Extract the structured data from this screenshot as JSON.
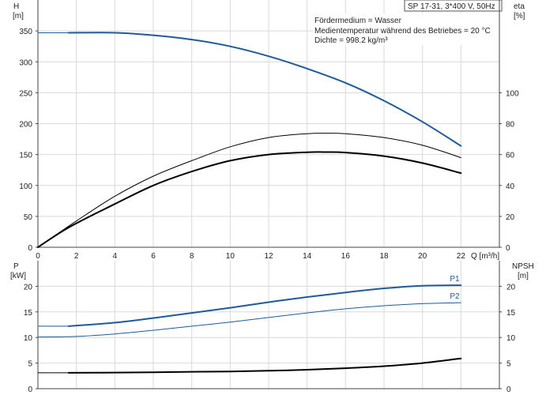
{
  "title_box": "SP 17-31, 3*400 V, 50Hz",
  "info_lines": [
    "Fördermedium = Wasser",
    "Medientemperatur während des Betriebes = 20 °C",
    "Dichte = 998.2 kg/m³"
  ],
  "colors": {
    "blue": "#1f5a99",
    "black": "#000000",
    "axis": "#444444"
  },
  "chart_data": [
    {
      "type": "line",
      "name": "upper",
      "xlabel": "Q [m³/h]",
      "ylabel_left": "H",
      "ylabel_left_unit": "[m]",
      "ylabel_right": "eta",
      "ylabel_right_unit": "[%]",
      "xlim": [
        0,
        24
      ],
      "ylim_left": [
        0,
        400
      ],
      "ylim_right": [
        0,
        160
      ],
      "x_ticks": [
        0,
        2,
        4,
        6,
        8,
        10,
        12,
        14,
        16,
        18,
        20,
        22
      ],
      "y_left_ticks": [
        0,
        50,
        100,
        150,
        200,
        250,
        300,
        350
      ],
      "y_right_ticks": [
        0,
        20,
        40,
        60,
        80,
        100
      ],
      "series": [
        {
          "key": "H_ext",
          "axis": "left",
          "color": "#1f5a99",
          "width": 1,
          "x": [
            0,
            1.6
          ],
          "y": [
            347,
            347
          ]
        },
        {
          "key": "H",
          "axis": "left",
          "color": "#1f5a99",
          "width": 2,
          "x": [
            1.6,
            4,
            6,
            8,
            10,
            12,
            14,
            16,
            18,
            20,
            22
          ],
          "y": [
            347,
            347,
            343,
            336,
            325,
            309,
            289,
            266,
            237,
            203,
            164
          ]
        },
        {
          "key": "eta_thin",
          "axis": "right",
          "color": "#000000",
          "width": 1,
          "x": [
            0,
            2,
            4,
            6,
            8,
            10,
            12,
            14,
            15,
            16,
            18,
            20,
            22
          ],
          "y": [
            0,
            17,
            33,
            46,
            56,
            65,
            71,
            73.5,
            73.8,
            73.5,
            71,
            66,
            58
          ]
        },
        {
          "key": "eta_thick",
          "axis": "right",
          "color": "#000000",
          "width": 2,
          "x": [
            0,
            1.6,
            4,
            6,
            8,
            10,
            12,
            14,
            15,
            16,
            18,
            20,
            22
          ],
          "y": [
            0,
            12.8,
            28,
            40,
            49,
            56,
            60,
            61.5,
            61.6,
            61.3,
            59,
            54.5,
            48
          ]
        }
      ]
    },
    {
      "type": "line",
      "name": "lower",
      "ylabel_left": "P",
      "ylabel_left_unit": "[kW]",
      "ylabel_right": "NPSH",
      "ylabel_right_unit": "[m]",
      "xlim": [
        0,
        24
      ],
      "ylim_left": [
        0,
        25
      ],
      "ylim_right": [
        0,
        25
      ],
      "y_left_ticks": [
        0,
        5,
        10,
        15,
        20
      ],
      "y_right_ticks": [
        0,
        5,
        10,
        15,
        20
      ],
      "series": [
        {
          "key": "P1_ext",
          "axis": "left",
          "color": "#1f5a99",
          "width": 1,
          "x": [
            0,
            1.6
          ],
          "y": [
            12.2,
            12.2
          ]
        },
        {
          "key": "P1",
          "axis": "left",
          "color": "#1f5a99",
          "width": 2,
          "label": "P1",
          "x": [
            1.6,
            4,
            6,
            8,
            10,
            12,
            14,
            16,
            18,
            20,
            22
          ],
          "y": [
            12.2,
            12.9,
            13.8,
            14.8,
            15.8,
            16.9,
            17.9,
            18.8,
            19.6,
            20.1,
            20.2
          ]
        },
        {
          "key": "P2",
          "axis": "left",
          "color": "#1f5a99",
          "width": 1,
          "label": "P2",
          "x": [
            0,
            2,
            4,
            6,
            8,
            10,
            12,
            14,
            16,
            18,
            20,
            22
          ],
          "y": [
            10.1,
            10.2,
            10.7,
            11.4,
            12.2,
            13.0,
            13.9,
            14.8,
            15.6,
            16.2,
            16.6,
            16.8
          ]
        },
        {
          "key": "NPSH_ext",
          "axis": "right",
          "color": "#000000",
          "width": 1,
          "x": [
            0,
            1.6
          ],
          "y": [
            3.1,
            3.1
          ]
        },
        {
          "key": "NPSH",
          "axis": "right",
          "color": "#000000",
          "width": 2,
          "x": [
            1.6,
            4,
            6,
            8,
            10,
            12,
            14,
            16,
            18,
            20,
            22
          ],
          "y": [
            3.1,
            3.15,
            3.2,
            3.3,
            3.35,
            3.5,
            3.7,
            4.0,
            4.4,
            5.0,
            5.9
          ]
        }
      ]
    }
  ]
}
